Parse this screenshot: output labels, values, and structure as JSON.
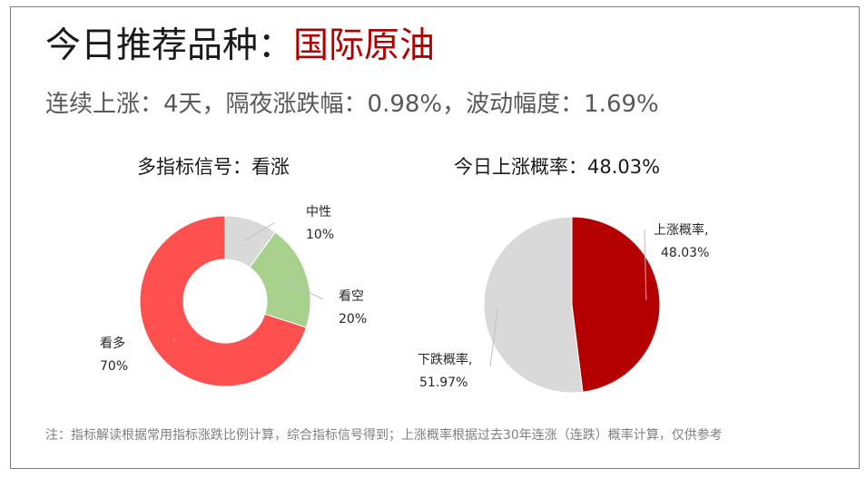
{
  "header": {
    "title_prefix": "今日推荐品种：",
    "title_highlight": "国际原油",
    "subtitle": "连续上涨：4天，隔夜涨跌幅：0.98%，波动幅度：1.69%"
  },
  "colors": {
    "accent": "#b00000",
    "neutral": "#d9d9d9",
    "bearish": "#a9d18e",
    "bullish": "#ff5050",
    "up": "#b40000",
    "down": "#d9d9d9"
  },
  "chart_data": [
    {
      "type": "pie",
      "variant": "donut",
      "title": "多指标信号：看涨",
      "slices": [
        {
          "name": "中性",
          "label": "10%",
          "value": 10,
          "color": "#d9d9d9"
        },
        {
          "name": "看空",
          "label": "20%",
          "value": 20,
          "color": "#a9d18e"
        },
        {
          "name": "看多",
          "label": "70%",
          "value": 70,
          "color": "#ff5050"
        }
      ]
    },
    {
      "type": "pie",
      "title": "今日上涨概率：48.03%",
      "slices": [
        {
          "name": "上涨概率,",
          "label": "48.03%",
          "value": 48.03,
          "color": "#b40000"
        },
        {
          "name": "下跌概率,",
          "label": "51.97%",
          "value": 51.97,
          "color": "#d9d9d9"
        }
      ]
    }
  ],
  "footnote": "注：指标解读根据常用指标涨跌比例计算，综合指标信号得到；上涨概率根据过去30年连涨（连跌）概率计算，仅供参考"
}
